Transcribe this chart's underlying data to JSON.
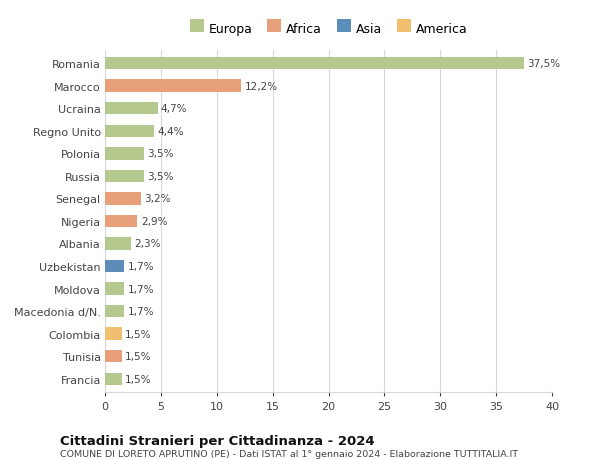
{
  "categories": [
    "Francia",
    "Tunisia",
    "Colombia",
    "Macedonia d/N.",
    "Moldova",
    "Uzbekistan",
    "Albania",
    "Nigeria",
    "Senegal",
    "Russia",
    "Polonia",
    "Regno Unito",
    "Ucraina",
    "Marocco",
    "Romania"
  ],
  "values": [
    1.5,
    1.5,
    1.5,
    1.7,
    1.7,
    1.7,
    2.3,
    2.9,
    3.2,
    3.5,
    3.5,
    4.4,
    4.7,
    12.2,
    37.5
  ],
  "labels": [
    "1,5%",
    "1,5%",
    "1,5%",
    "1,7%",
    "1,7%",
    "1,7%",
    "2,3%",
    "2,9%",
    "3,2%",
    "3,5%",
    "3,5%",
    "4,4%",
    "4,7%",
    "12,2%",
    "37,5%"
  ],
  "colors": [
    "#b5c98e",
    "#e8a07a",
    "#f0c070",
    "#b5c98e",
    "#b5c98e",
    "#5b8db8",
    "#b5c98e",
    "#e8a07a",
    "#e8a07a",
    "#b5c98e",
    "#b5c98e",
    "#b5c98e",
    "#b5c98e",
    "#e8a07a",
    "#b5c98e"
  ],
  "legend_labels": [
    "Europa",
    "Africa",
    "Asia",
    "America"
  ],
  "legend_colors": [
    "#b5c98e",
    "#e8a07a",
    "#5b8db8",
    "#f0c070"
  ],
  "title": "Cittadini Stranieri per Cittadinanza - 2024",
  "subtitle": "COMUNE DI LORETO APRUTINO (PE) - Dati ISTAT al 1° gennaio 2024 - Elaborazione TUTTITALIA.IT",
  "xlim": [
    0,
    40
  ],
  "xticks": [
    0,
    5,
    10,
    15,
    20,
    25,
    30,
    35,
    40
  ],
  "background_color": "#ffffff",
  "grid_color": "#d8d8d8"
}
